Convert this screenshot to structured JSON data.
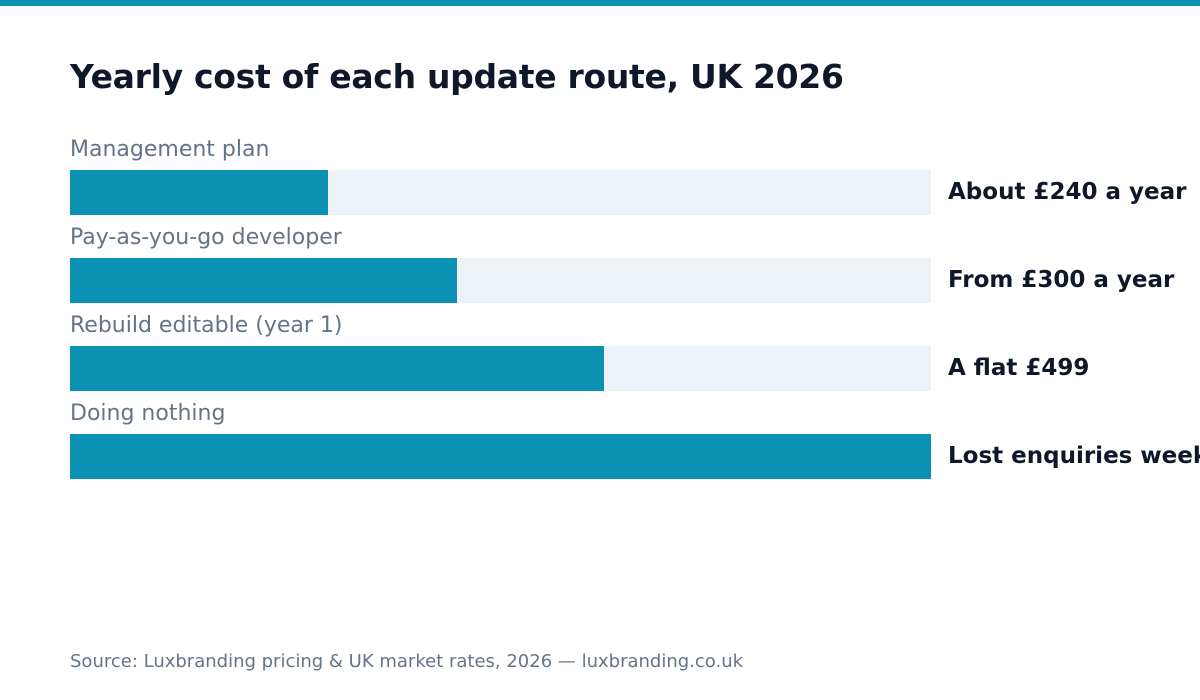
{
  "colors": {
    "accent": "#0a91b4",
    "track": "#edf2f7",
    "title": "#0f172a",
    "muted": "#647488"
  },
  "chart_data": {
    "type": "bar",
    "orientation": "horizontal",
    "title": "Yearly cost of each update route, UK 2026",
    "categories": [
      "Management plan",
      "Pay-as-you-go developer",
      "Rebuild editable (year 1)",
      "Doing nothing"
    ],
    "value_labels": [
      "About £240 a year",
      "From £300 a year",
      "A flat £499",
      "Lost enquiries weekly"
    ],
    "fill_fractions": [
      0.3,
      0.45,
      0.62,
      1.0
    ],
    "source": "Source: Luxbranding pricing & UK market rates, 2026 — luxbranding.co.uk"
  }
}
